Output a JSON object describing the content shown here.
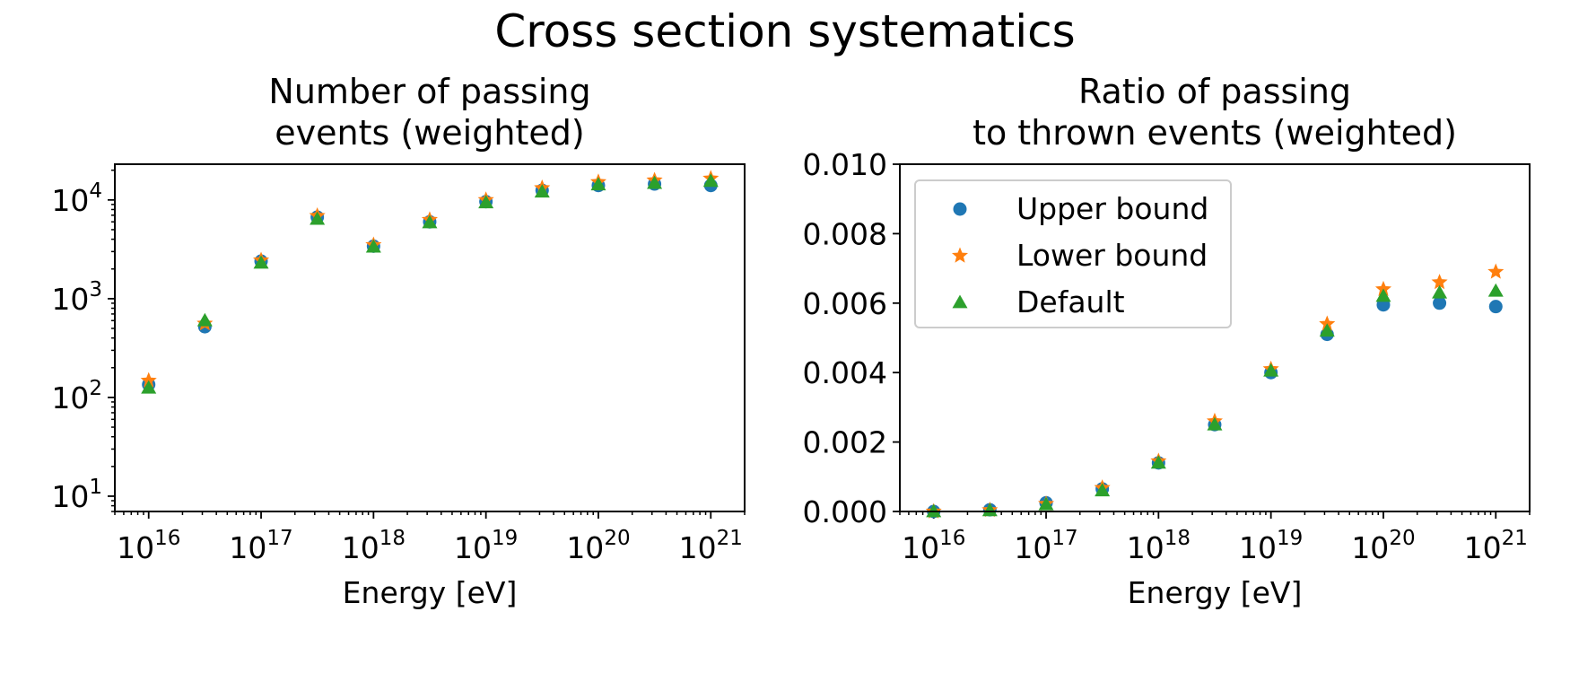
{
  "figure": {
    "suptitle": "Cross section systematics"
  },
  "chart_data": [
    {
      "type": "scatter",
      "title_lines": [
        "Number of passing",
        "events (weighted)"
      ],
      "xlabel": "Energy [eV]",
      "ylabel": "",
      "xscale": "log",
      "yscale": "log",
      "xlim": [
        5000000000000000.0,
        2e+21
      ],
      "ylim": [
        7,
        23000
      ],
      "x_ticks": [
        {
          "value": 1e+16,
          "label": "10^16"
        },
        {
          "value": 1e+17,
          "label": "10^17"
        },
        {
          "value": 1e+18,
          "label": "10^18"
        },
        {
          "value": 1e+19,
          "label": "10^19"
        },
        {
          "value": 1e+20,
          "label": "10^20"
        },
        {
          "value": 1e+21,
          "label": "10^21"
        }
      ],
      "y_ticks": [
        {
          "value": 10,
          "label": "10^1"
        },
        {
          "value": 100,
          "label": "10^2"
        },
        {
          "value": 1000,
          "label": "10^3"
        },
        {
          "value": 10000,
          "label": "10^4"
        }
      ],
      "x": [
        1e+16,
        3.16e+16,
        1e+17,
        3.16e+17,
        1e+18,
        3.16e+18,
        1e+19,
        3.16e+19,
        1e+20,
        3.16e+20,
        1e+21
      ],
      "series": [
        {
          "name": "Upper bound",
          "marker": "circle",
          "color": "#1f77b4",
          "values": [
            135,
            520,
            2400,
            6700,
            3400,
            6000,
            9600,
            12500,
            14000,
            14500,
            14000
          ]
        },
        {
          "name": "Lower bound",
          "marker": "star",
          "color": "#ff7f0e",
          "values": [
            148,
            560,
            2450,
            6900,
            3500,
            6300,
            10000,
            13200,
            15200,
            15800,
            16500
          ]
        },
        {
          "name": "Default",
          "marker": "triangle",
          "color": "#2ca02c",
          "values": [
            125,
            600,
            2300,
            6400,
            3350,
            5900,
            9400,
            12100,
            14300,
            14800,
            15500
          ]
        }
      ],
      "grid": false,
      "legend": null
    },
    {
      "type": "scatter",
      "title_lines": [
        "Ratio of passing",
        "to thrown events (weighted)"
      ],
      "xlabel": "Energy [eV]",
      "ylabel": "",
      "xscale": "log",
      "yscale": "linear",
      "xlim": [
        5000000000000000.0,
        2e+21
      ],
      "ylim": [
        0,
        0.01
      ],
      "x_ticks": [
        {
          "value": 1e+16,
          "label": "10^16"
        },
        {
          "value": 1e+17,
          "label": "10^17"
        },
        {
          "value": 1e+18,
          "label": "10^18"
        },
        {
          "value": 1e+19,
          "label": "10^19"
        },
        {
          "value": 1e+20,
          "label": "10^20"
        },
        {
          "value": 1e+21,
          "label": "10^21"
        }
      ],
      "y_ticks": [
        {
          "value": 0.0,
          "label": "0.000"
        },
        {
          "value": 0.002,
          "label": "0.002"
        },
        {
          "value": 0.004,
          "label": "0.004"
        },
        {
          "value": 0.006,
          "label": "0.006"
        },
        {
          "value": 0.008,
          "label": "0.008"
        },
        {
          "value": 0.01,
          "label": "0.010"
        }
      ],
      "x": [
        1e+16,
        3.16e+16,
        1e+17,
        3.16e+17,
        1e+18,
        3.16e+18,
        1e+19,
        3.16e+19,
        1e+20,
        3.16e+20,
        1e+21
      ],
      "series": [
        {
          "name": "Upper bound",
          "marker": "circle",
          "color": "#1f77b4",
          "values": [
            0.0,
            5e-05,
            0.00025,
            0.00065,
            0.0014,
            0.0025,
            0.004,
            0.0051,
            0.00595,
            0.006,
            0.0059
          ]
        },
        {
          "name": "Lower bound",
          "marker": "star",
          "color": "#ff7f0e",
          "values": [
            0.0,
            4e-05,
            0.00022,
            0.00068,
            0.00145,
            0.0026,
            0.0041,
            0.0054,
            0.0064,
            0.0066,
            0.0069
          ]
        },
        {
          "name": "Default",
          "marker": "triangle",
          "color": "#2ca02c",
          "values": [
            0.0,
            3e-05,
            0.0002,
            0.0006,
            0.0014,
            0.0025,
            0.00405,
            0.0052,
            0.0062,
            0.0063,
            0.00635
          ]
        }
      ],
      "grid": false,
      "legend": {
        "location": "upper left",
        "entries": [
          "Upper bound",
          "Lower bound",
          "Default"
        ]
      }
    }
  ]
}
